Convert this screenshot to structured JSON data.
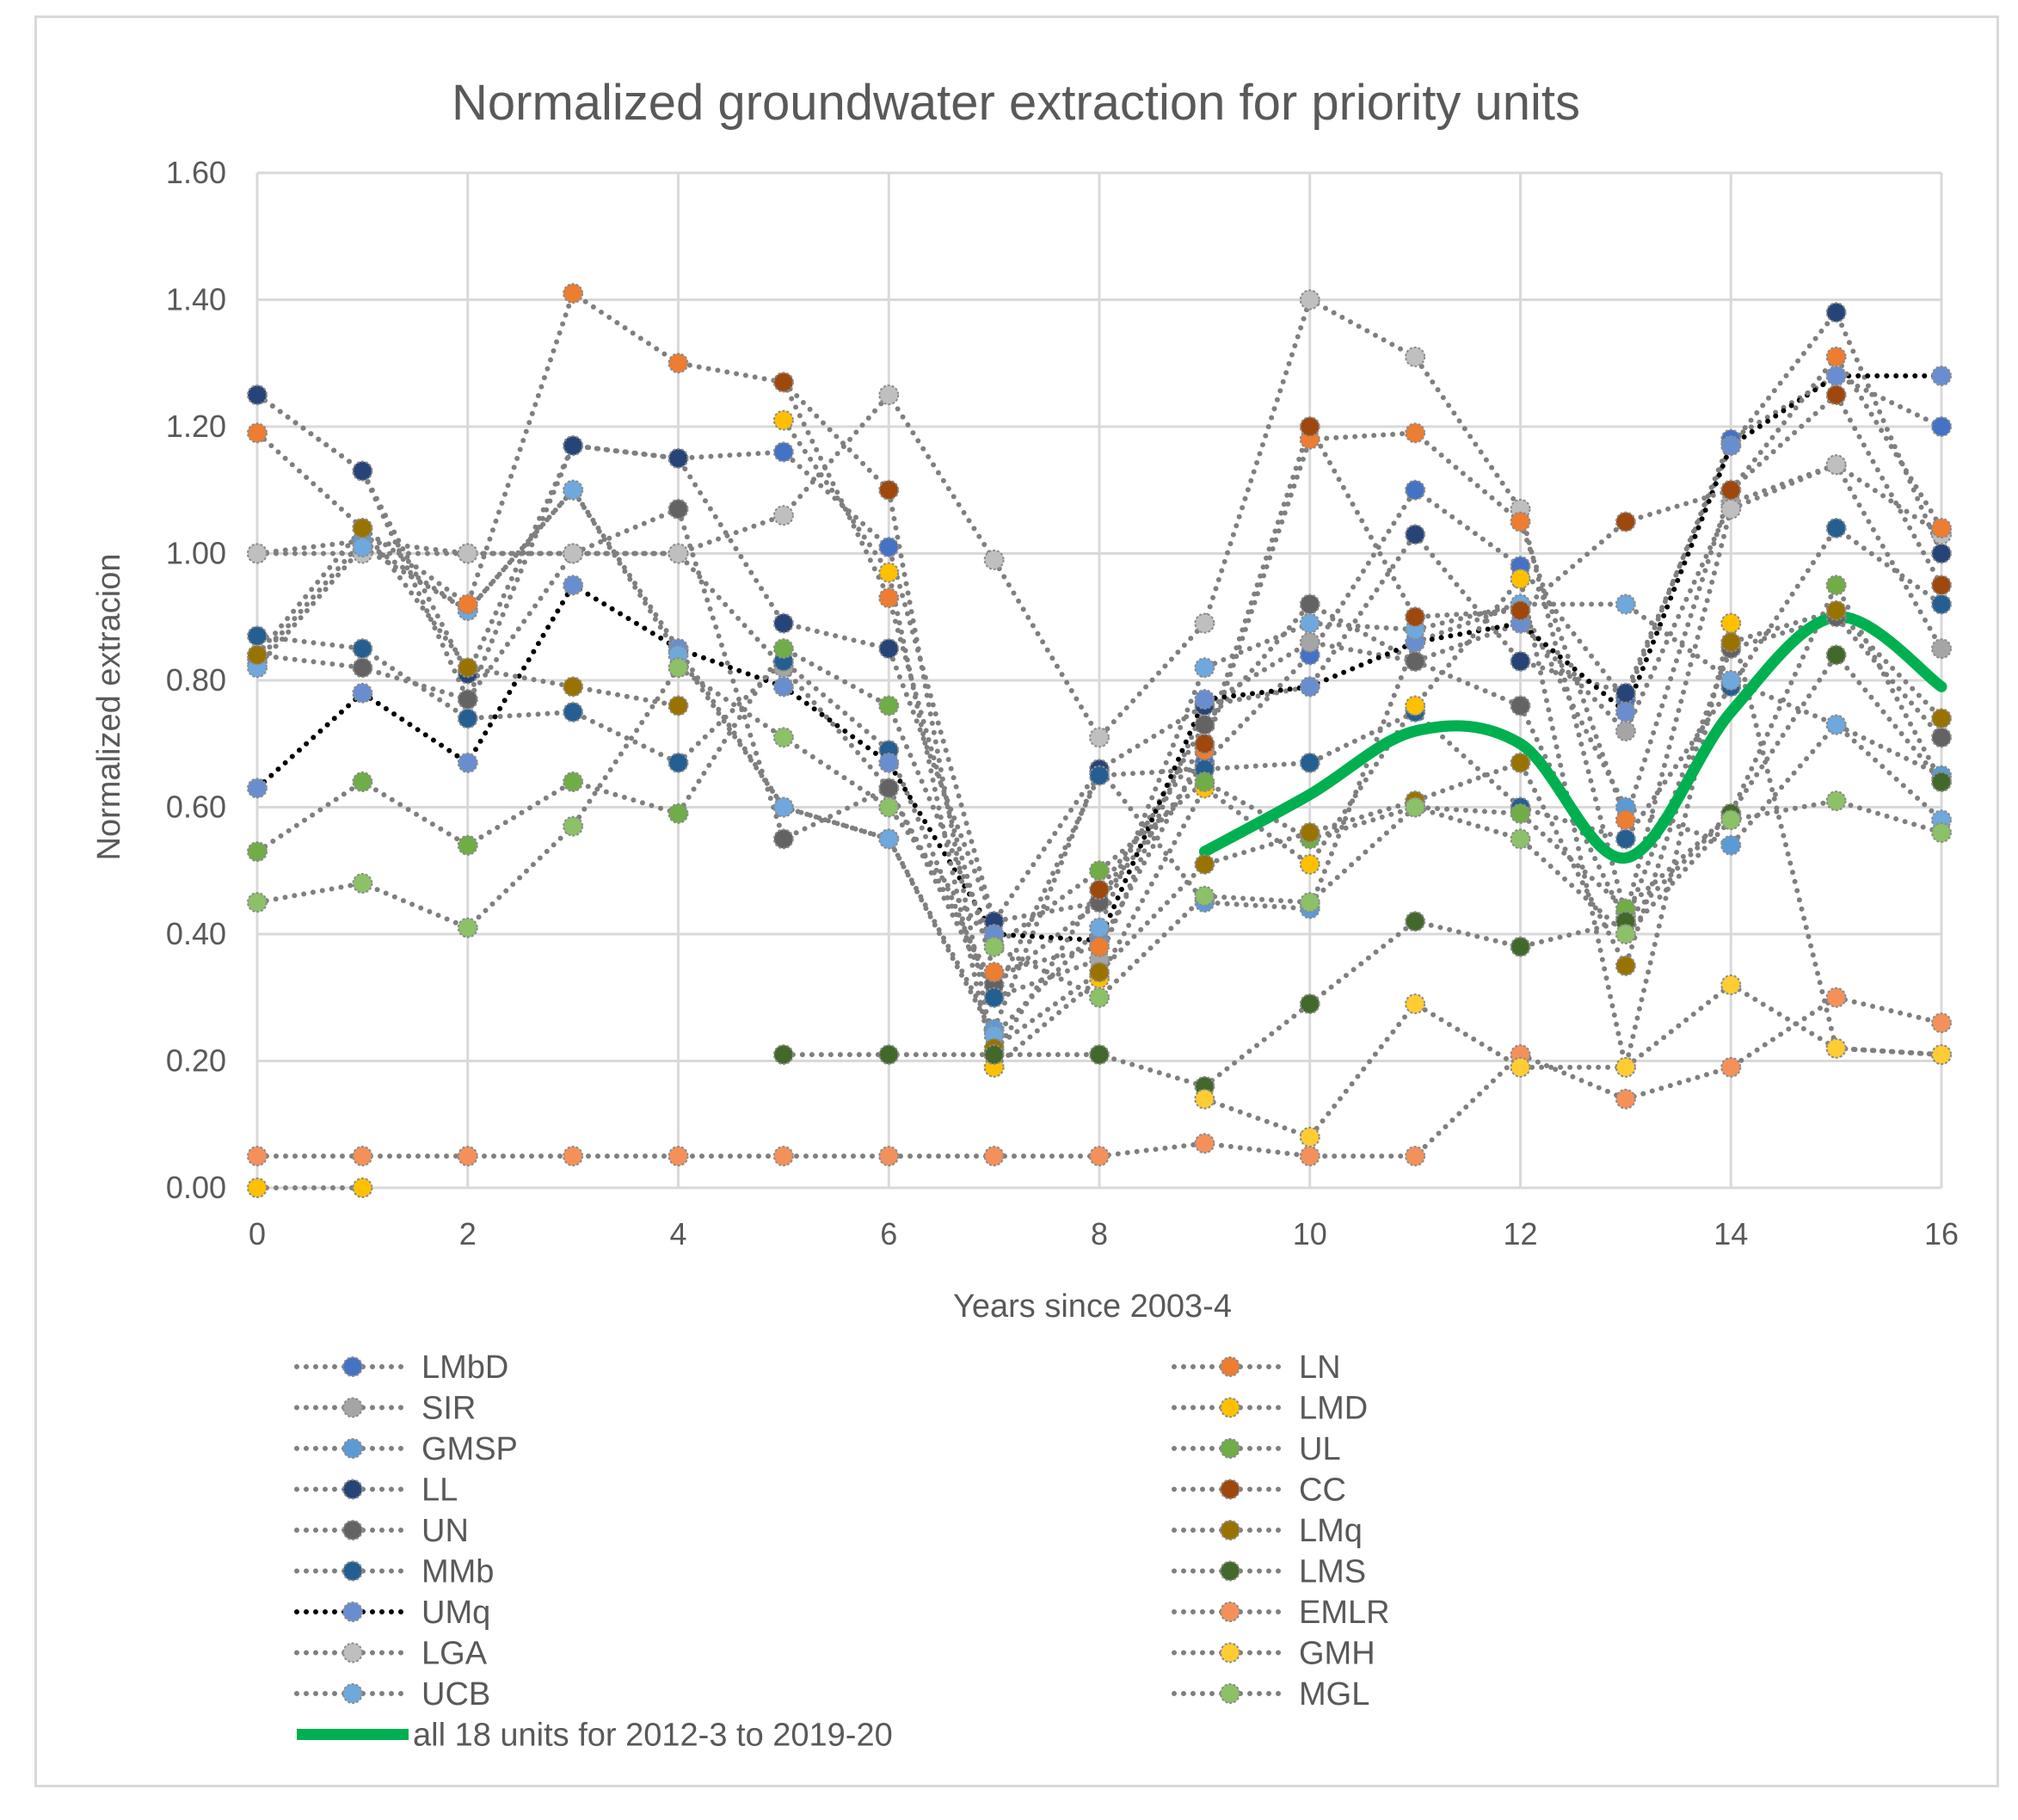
{
  "chart_data": {
    "type": "line",
    "title": "Normalized groundwater extraction for priority units",
    "xlabel": "Years since 2003-4",
    "ylabel": "Normalized extracion",
    "xlim": [
      0,
      16
    ],
    "ylim": [
      0,
      1.6
    ],
    "x_ticks": [
      "0",
      "2",
      "4",
      "6",
      "8",
      "10",
      "12",
      "14",
      "16"
    ],
    "y_ticks": [
      "0.00",
      "0.20",
      "0.40",
      "0.60",
      "0.80",
      "1.00",
      "1.20",
      "1.40",
      "1.60"
    ],
    "grid": true,
    "legend_position": "bottom",
    "x": [
      0,
      1,
      2,
      3,
      4,
      5,
      6,
      7,
      8,
      9,
      10,
      11,
      12,
      13,
      14,
      15,
      16
    ],
    "series": [
      {
        "name": "LMbD",
        "color": "#4472C4",
        "values": [
          1.25,
          1.13,
          0.77,
          1.17,
          1.15,
          1.16,
          1.01,
          0.42,
          0.45,
          0.67,
          0.84,
          1.1,
          0.98,
          0.77,
          1.18,
          1.28,
          1.2
        ]
      },
      {
        "name": "SIR",
        "color": "#A5A5A5",
        "values": [
          1.0,
          1.02,
          1.0,
          1.0,
          1.0,
          0.82,
          0.63,
          0.3,
          0.36,
          0.76,
          0.86,
          0.83,
          0.89,
          0.72,
          1.08,
          1.14,
          0.85
        ]
      },
      {
        "name": "GMSP",
        "color": "#5B9BD5",
        "values": [
          0.83,
          1.02,
          0.91,
          1.1,
          0.85,
          0.6,
          0.55,
          0.25,
          0.66,
          0.45,
          0.44,
          0.86,
          0.92,
          0.6,
          0.54,
          0.73,
          0.65
        ]
      },
      {
        "name": "LL",
        "color": "#264478",
        "values": [
          1.25,
          1.13,
          0.81,
          1.17,
          1.15,
          0.89,
          0.85,
          0.42,
          0.66,
          0.76,
          0.79,
          1.03,
          0.83,
          0.78,
          1.17,
          1.38,
          1.0
        ]
      },
      {
        "name": "UN",
        "color": "#636363",
        "values": [
          0.84,
          0.82,
          0.77,
          1.0,
          1.07,
          0.55,
          0.63,
          0.32,
          0.45,
          0.73,
          0.92,
          0.83,
          0.76,
          0.42,
          0.85,
          0.9,
          0.71
        ]
      },
      {
        "name": "MMb",
        "color": "#255E91",
        "values": [
          0.87,
          0.85,
          0.74,
          0.75,
          0.67,
          0.83,
          0.69,
          0.3,
          0.65,
          0.66,
          0.67,
          0.75,
          0.6,
          0.55,
          0.79,
          1.04,
          0.92
        ]
      },
      {
        "name": "UMq",
        "color": "#698ED0",
        "dash": "black",
        "values": [
          0.63,
          0.78,
          0.67,
          0.95,
          0.85,
          0.79,
          0.67,
          0.4,
          0.39,
          0.77,
          0.79,
          0.86,
          0.89,
          0.75,
          1.17,
          1.28,
          1.28
        ]
      },
      {
        "name": "LGA",
        "color": "#BFBFBF",
        "values": [
          1.0,
          1.0,
          1.0,
          1.0,
          1.0,
          1.06,
          1.25,
          0.99,
          0.71,
          0.89,
          1.4,
          1.31,
          1.07,
          0.43,
          1.07,
          1.14,
          1.03
        ]
      },
      {
        "name": "UCB",
        "color": "#6FA8DC",
        "values": [
          0.82,
          1.01,
          0.91,
          1.1,
          0.84,
          0.6,
          0.55,
          0.24,
          0.41,
          0.82,
          0.89,
          0.88,
          0.92,
          0.92,
          0.8,
          0.73,
          0.58
        ]
      },
      {
        "name": "LN",
        "color": "#ED7D31",
        "values": [
          1.19,
          1.04,
          0.92,
          1.41,
          1.3,
          1.27,
          0.93,
          0.34,
          0.38,
          0.69,
          1.18,
          1.19,
          1.05,
          0.58,
          1.1,
          1.31,
          1.04
        ]
      },
      {
        "name": "LMD",
        "color": "#FFC000",
        "values": [
          0.0,
          0.0,
          null,
          null,
          null,
          1.21,
          0.97,
          0.19,
          0.33,
          0.63,
          0.51,
          0.76,
          0.96,
          0.19,
          0.89,
          0.22,
          0.21
        ]
      },
      {
        "name": "UL",
        "color": "#70AD47",
        "values": [
          0.53,
          0.64,
          0.54,
          0.64,
          0.59,
          0.85,
          0.76,
          0.38,
          0.5,
          0.64,
          0.55,
          0.6,
          0.59,
          0.44,
          0.59,
          0.95,
          0.64
        ]
      },
      {
        "name": "CC",
        "color": "#9E480E",
        "values": [
          null,
          null,
          null,
          null,
          null,
          1.27,
          1.1,
          0.21,
          0.47,
          0.7,
          1.2,
          0.9,
          0.91,
          1.05,
          1.1,
          1.25,
          0.95
        ]
      },
      {
        "name": "LMq",
        "color": "#997300",
        "values": [
          0.84,
          1.04,
          0.82,
          0.79,
          0.76,
          null,
          null,
          0.22,
          0.34,
          0.51,
          0.56,
          0.61,
          0.67,
          0.35,
          0.86,
          0.91,
          0.74
        ]
      },
      {
        "name": "LMS",
        "color": "#43682B",
        "values": [
          null,
          null,
          null,
          null,
          null,
          0.21,
          0.21,
          0.21,
          0.21,
          0.16,
          0.29,
          0.42,
          0.38,
          0.42,
          0.59,
          0.84,
          0.64
        ]
      },
      {
        "name": "EMLR",
        "color": "#F4915A",
        "values": [
          0.05,
          0.05,
          0.05,
          0.05,
          0.05,
          0.05,
          0.05,
          0.05,
          0.05,
          0.07,
          0.05,
          0.05,
          0.21,
          0.14,
          0.19,
          0.3,
          0.26
        ]
      },
      {
        "name": "GMH",
        "color": "#FFCD33",
        "values": [
          null,
          null,
          null,
          null,
          null,
          null,
          null,
          null,
          null,
          0.14,
          0.08,
          0.29,
          0.19,
          0.19,
          0.32,
          0.22,
          0.21
        ]
      },
      {
        "name": "MGL",
        "color": "#8CC168",
        "values": [
          0.45,
          0.48,
          0.41,
          0.57,
          0.82,
          0.71,
          0.6,
          0.38,
          0.3,
          0.46,
          0.45,
          0.6,
          0.55,
          0.4,
          0.58,
          0.61,
          0.56
        ]
      }
    ],
    "trend": {
      "name": "all 18 units for 2012-3 to 2019-20",
      "color": "#00B050",
      "x": [
        9,
        10,
        11,
        12,
        13,
        14,
        15,
        16
      ],
      "values": [
        0.53,
        0.62,
        0.72,
        0.7,
        0.52,
        0.75,
        0.9,
        0.79
      ]
    }
  }
}
